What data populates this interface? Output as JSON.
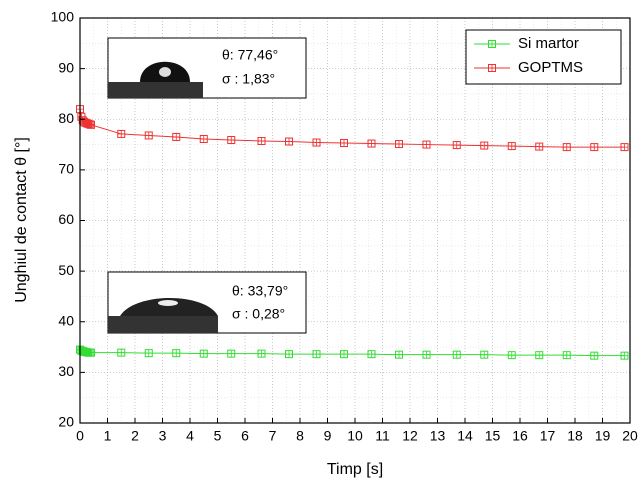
{
  "chart_data": {
    "type": "line",
    "x_label": "Timp [s]",
    "y_label": "Unghiul de contact θ [°]",
    "xlim": [
      0,
      20
    ],
    "xticks": [
      0,
      1,
      2,
      3,
      4,
      5,
      6,
      7,
      8,
      9,
      10,
      11,
      12,
      13,
      14,
      15,
      16,
      17,
      18,
      19,
      20
    ],
    "ylim": [
      20,
      100
    ],
    "yticks": [
      20,
      30,
      40,
      50,
      60,
      70,
      80,
      90,
      100
    ],
    "grid": true,
    "legend": "top-right",
    "x": [
      0,
      0.05,
      0.1,
      0.15,
      0.2,
      0.25,
      0.3,
      0.35,
      0.4,
      1.5,
      2.5,
      3.5,
      4.5,
      5.5,
      6.6,
      7.6,
      8.6,
      9.6,
      10.6,
      11.6,
      12.6,
      13.7,
      14.7,
      15.7,
      16.7,
      17.7,
      18.7,
      19.8
    ],
    "series": [
      {
        "name": "Si martor",
        "color": "#33dd33",
        "values": [
          34.5,
          34.3,
          34.2,
          34.1,
          34.0,
          34.0,
          33.9,
          33.9,
          33.9,
          33.9,
          33.8,
          33.8,
          33.7,
          33.7,
          33.7,
          33.6,
          33.6,
          33.6,
          33.6,
          33.5,
          33.5,
          33.5,
          33.5,
          33.4,
          33.4,
          33.4,
          33.3,
          33.3
        ]
      },
      {
        "name": "GOPTMS",
        "color": "#ee3333",
        "values": [
          82.0,
          80.5,
          79.8,
          79.5,
          79.3,
          79.2,
          79.1,
          79.0,
          78.9,
          77.1,
          76.8,
          76.5,
          76.1,
          75.9,
          75.7,
          75.6,
          75.4,
          75.3,
          75.2,
          75.1,
          75.0,
          74.9,
          74.8,
          74.7,
          74.6,
          74.5,
          74.5,
          74.5
        ]
      }
    ],
    "annotations": [
      {
        "theta": "θ: 77,46°",
        "sigma": "σ : 1,83°"
      },
      {
        "theta": "θ: 33,79°",
        "sigma": "σ : 0,28°"
      }
    ]
  }
}
